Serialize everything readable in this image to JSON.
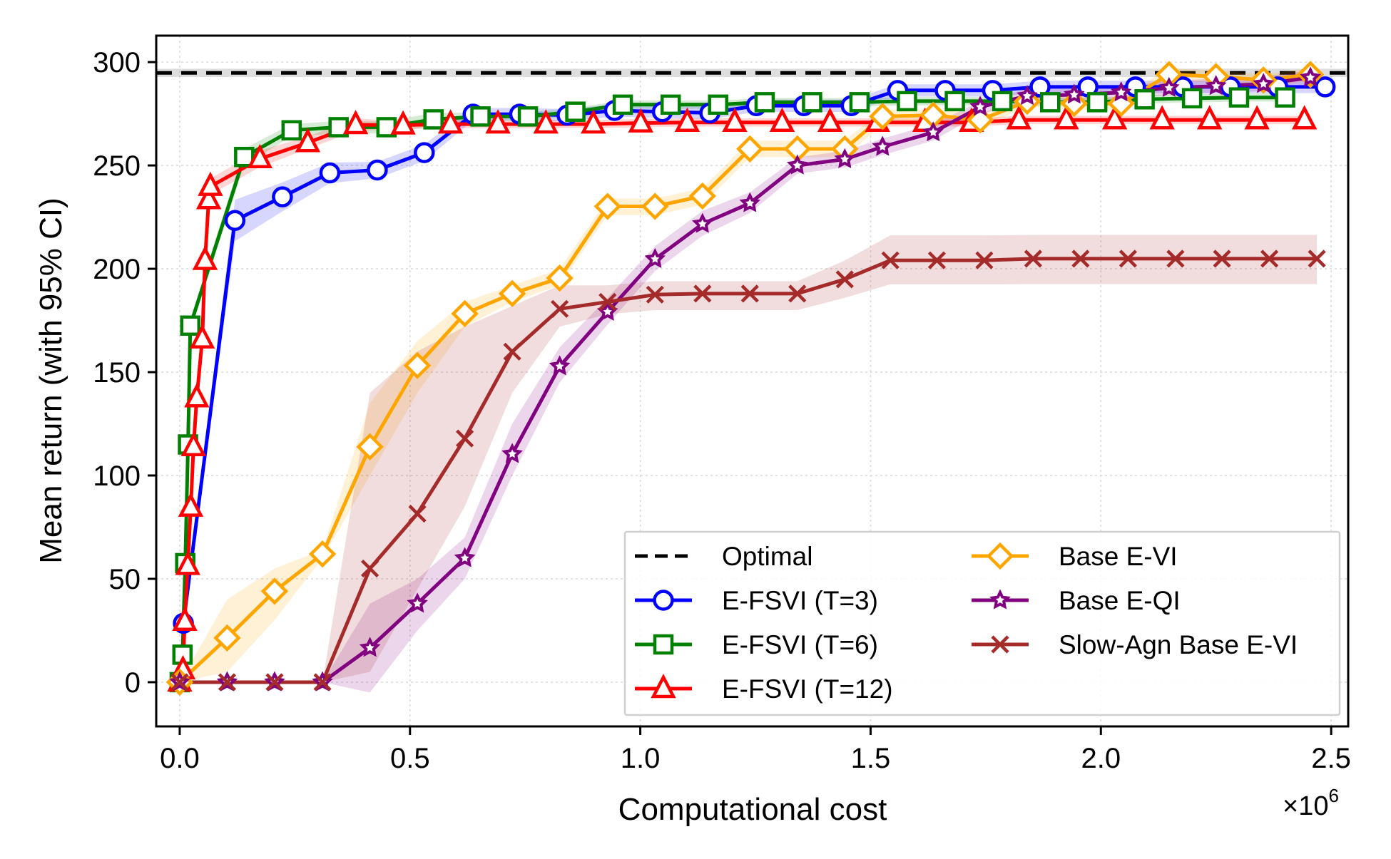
{
  "chart_data": {
    "type": "line",
    "title": "",
    "xlabel": "Computational cost",
    "ylabel": "Mean return (with 95% CI)",
    "x_multiplier_label": "×10",
    "x_multiplier_exponent": "6",
    "x_scale": 1000000,
    "xlim": [
      -0.051,
      2.537
    ],
    "ylim": [
      -21.4,
      312.8
    ],
    "xticks": [
      0.0,
      0.5,
      1.0,
      1.5,
      2.0,
      2.5
    ],
    "xtick_labels": [
      "0.0",
      "0.5",
      "1.0",
      "1.5",
      "2.0",
      "2.5"
    ],
    "yticks": [
      0,
      50,
      100,
      150,
      200,
      250,
      300
    ],
    "ytick_labels": [
      "0",
      "50",
      "100",
      "150",
      "200",
      "250",
      "300"
    ],
    "grid": true,
    "legend_placement": "lower-right",
    "legend_columns": 2,
    "optimal": {
      "name": "Optimal",
      "value": 294.8,
      "ci": [
        292.8,
        296.8
      ],
      "color": "#000000"
    },
    "series": [
      {
        "name": "E-FSVI (T=3)",
        "color": "#0000ff",
        "marker": "circle",
        "x": [
          0.008,
          0.12,
          0.223,
          0.326,
          0.429,
          0.531,
          0.637,
          0.738,
          0.841,
          0.944,
          1.048,
          1.151,
          1.252,
          1.355,
          1.458,
          1.559,
          1.662,
          1.765,
          1.868,
          1.972,
          2.075,
          2.178,
          2.281,
          2.384,
          2.487
        ],
        "y": [
          28.5,
          223.4,
          234.8,
          246.4,
          247.8,
          256.2,
          274.8,
          274.8,
          274.3,
          276.6,
          276.0,
          275.4,
          278.9,
          278.9,
          278.9,
          286.3,
          286.3,
          286.3,
          288.0,
          288.0,
          288.0,
          288.0,
          288.0,
          288.0,
          288.0
        ],
        "ci_halfwidth": [
          3,
          10,
          7,
          5,
          4,
          4,
          3,
          3,
          3,
          3,
          3,
          3,
          3,
          3,
          3,
          3,
          3,
          3,
          3,
          3,
          3,
          3,
          3,
          3,
          3
        ]
      },
      {
        "name": "E-FSVI (T=6)",
        "color": "#008000",
        "marker": "square",
        "x": [
          0.0,
          0.006,
          0.012,
          0.018,
          0.023,
          0.14,
          0.243,
          0.345,
          0.449,
          0.551,
          0.653,
          0.756,
          0.859,
          0.962,
          1.066,
          1.169,
          1.27,
          1.373,
          1.476,
          1.579,
          1.683,
          1.786,
          1.89,
          1.992,
          2.095,
          2.198,
          2.3,
          2.4
        ],
        "y": [
          0.0,
          13.3,
          57.6,
          115.0,
          172.5,
          254.1,
          267.0,
          268.5,
          268.5,
          272.3,
          273.7,
          273.7,
          276.0,
          279.4,
          279.4,
          279.4,
          280.6,
          280.6,
          280.6,
          281.1,
          281.1,
          281.1,
          280.6,
          280.6,
          282.0,
          282.5,
          282.9,
          282.9
        ],
        "ci_halfwidth": [
          0,
          2,
          3,
          3,
          3,
          4,
          3,
          3,
          3,
          3,
          2,
          2,
          2,
          2,
          2,
          2,
          2,
          2,
          2,
          2,
          2,
          2,
          2,
          2,
          2,
          2,
          2,
          2
        ]
      },
      {
        "name": "E-FSVI (T=12)",
        "color": "#ff0000",
        "marker": "triangle",
        "x": [
          0.0,
          0.007,
          0.011,
          0.0175,
          0.024,
          0.03,
          0.037,
          0.049,
          0.055,
          0.063,
          0.0666,
          0.174,
          0.278,
          0.382,
          0.485,
          0.588,
          0.691,
          0.795,
          0.898,
          1.001,
          1.102,
          1.205,
          1.308,
          1.412,
          1.515,
          1.618,
          1.719,
          1.822,
          1.925,
          2.03,
          2.133,
          2.236,
          2.339,
          2.442
        ],
        "y": [
          0.0,
          5.9,
          29.4,
          56.4,
          84.6,
          113.9,
          137.5,
          166.0,
          204.0,
          233.4,
          239.8,
          253.2,
          261.0,
          269.7,
          269.5,
          270.0,
          270.0,
          270.0,
          270.0,
          270.5,
          270.8,
          270.8,
          270.8,
          270.8,
          270.8,
          270.8,
          270.8,
          272.0,
          272.0,
          272.0,
          272.0,
          272.0,
          272.0,
          272.0
        ],
        "ci_halfwidth": [
          0,
          2,
          3,
          3,
          3,
          3,
          3,
          3,
          4,
          4,
          4,
          4,
          3,
          3,
          2,
          2,
          2,
          2,
          2,
          2,
          2,
          2,
          2,
          2,
          2,
          2,
          2,
          2,
          2,
          2,
          2,
          2,
          2,
          2
        ]
      },
      {
        "name": "Base E-VI",
        "color": "#ffa500",
        "marker": "diamond",
        "x": [
          0.0,
          0.103,
          0.206,
          0.31,
          0.413,
          0.516,
          0.619,
          0.722,
          0.825,
          0.929,
          1.032,
          1.135,
          1.238,
          1.341,
          1.444,
          1.526,
          1.636,
          1.738,
          1.84,
          1.942,
          2.044,
          2.148,
          2.25,
          2.353,
          2.455
        ],
        "y": [
          0.0,
          21.4,
          44.0,
          62.0,
          113.9,
          153.2,
          178.3,
          188.0,
          195.5,
          230.2,
          230.2,
          235.2,
          258.0,
          258.0,
          258.0,
          273.7,
          274.3,
          272.0,
          281.0,
          280.0,
          280.0,
          294.0,
          293.0,
          291.3,
          294.0
        ],
        "ci_lower": [
          0.0,
          5.0,
          30.0,
          60.0,
          100.0,
          140.0,
          172.0,
          184.0,
          192.0,
          226.0,
          226.0,
          231.0,
          254.0,
          254.0,
          254.0,
          270.0,
          271.0,
          269.0,
          278.0,
          277.0,
          277.0,
          291.0,
          290.0,
          288.0,
          291.0
        ],
        "ci_upper": [
          0.0,
          40.0,
          55.0,
          64.0,
          135.0,
          165.0,
          184.0,
          192.0,
          200.0,
          234.0,
          234.0,
          239.0,
          262.0,
          262.0,
          262.0,
          277.0,
          277.0,
          275.0,
          284.0,
          283.0,
          283.0,
          297.0,
          296.0,
          294.0,
          297.0
        ]
      },
      {
        "name": "Base E-QI",
        "color": "#800080",
        "marker": "star",
        "x": [
          0.0,
          0.103,
          0.206,
          0.31,
          0.413,
          0.516,
          0.619,
          0.722,
          0.825,
          0.929,
          1.032,
          1.135,
          1.238,
          1.341,
          1.444,
          1.526,
          1.636,
          1.738,
          1.84,
          1.942,
          2.044,
          2.148,
          2.25,
          2.353,
          2.455
        ],
        "y": [
          0.0,
          0.0,
          0.0,
          0.0,
          16.6,
          38.0,
          60.0,
          110.4,
          152.8,
          179.2,
          204.7,
          221.7,
          231.7,
          250.0,
          253.0,
          259.0,
          266.0,
          278.3,
          283.6,
          284.2,
          285.3,
          287.5,
          288.4,
          289.4,
          292.5
        ],
        "ci_lower": [
          0.0,
          0.0,
          0.0,
          0.0,
          -5.0,
          25.0,
          50.0,
          100.0,
          145.0,
          173.0,
          199.0,
          216.0,
          227.0,
          246.0,
          249.0,
          255.0,
          262.0,
          275.0,
          280.0,
          281.0,
          282.0,
          284.0,
          285.0,
          286.0,
          289.0
        ],
        "ci_upper": [
          0.0,
          0.0,
          0.0,
          0.0,
          38.0,
          50.0,
          70.0,
          125.0,
          162.0,
          186.0,
          211.0,
          228.0,
          237.0,
          254.0,
          257.0,
          263.0,
          270.0,
          281.0,
          287.0,
          287.0,
          288.0,
          291.0,
          292.0,
          293.0,
          296.0
        ]
      },
      {
        "name": "Slow-Agn Base E-VI",
        "color": "#a52a2a",
        "marker": "x",
        "x": [
          0.0,
          0.103,
          0.206,
          0.31,
          0.413,
          0.516,
          0.619,
          0.722,
          0.825,
          0.929,
          1.032,
          1.135,
          1.238,
          1.341,
          1.444,
          1.543,
          1.644,
          1.747,
          1.853,
          1.956,
          2.059,
          2.162,
          2.263,
          2.366,
          2.469
        ],
        "y": [
          0.0,
          0.0,
          0.0,
          0.0,
          55.0,
          81.5,
          117.9,
          159.9,
          180.6,
          184.0,
          187.5,
          188.0,
          188.0,
          188.0,
          194.9,
          204.1,
          204.1,
          204.1,
          204.9,
          204.9,
          204.9,
          204.9,
          204.9,
          204.9,
          204.9
        ],
        "ci_lower": [
          0.0,
          0.0,
          0.0,
          0.0,
          5.0,
          45.0,
          85.0,
          140.0,
          172.0,
          178.0,
          180.0,
          180.0,
          180.0,
          180.0,
          186.0,
          192.5,
          192.5,
          192.5,
          192.6,
          192.6,
          192.6,
          192.6,
          192.6,
          192.6,
          192.6
        ],
        "ci_upper": [
          0.0,
          0.0,
          0.0,
          0.0,
          140.0,
          160.0,
          172.0,
          182.0,
          192.0,
          192.0,
          194.0,
          194.0,
          194.0,
          194.0,
          204.0,
          216.2,
          216.2,
          216.2,
          216.4,
          216.4,
          216.4,
          216.4,
          216.4,
          216.4,
          216.4
        ]
      }
    ]
  }
}
